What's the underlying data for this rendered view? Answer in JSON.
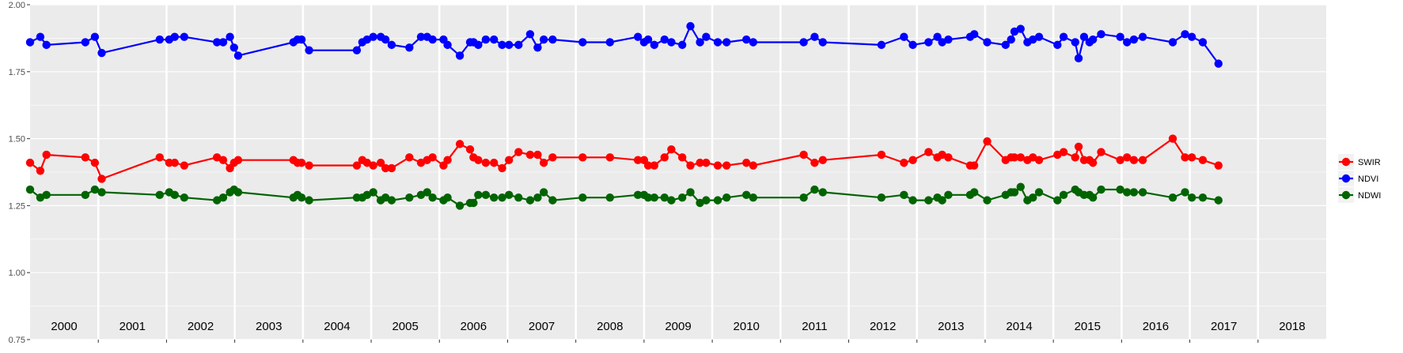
{
  "colors": {
    "panel_bg": "#EBEBEB",
    "grid_major": "#FFFFFF",
    "axis_text": "#4D4D4D",
    "year_text": "#000000",
    "swir": "#FF0000",
    "ndvi": "#0000FF",
    "ndwi": "#006400"
  },
  "chart_data": {
    "type": "line",
    "title": "",
    "xlabel": "",
    "ylabel": "",
    "xlim": [
      2000.0,
      2019.0
    ],
    "ylim": [
      0.75,
      2.0
    ],
    "y_ticks": [
      "0.75",
      "1.00",
      "1.25",
      "1.50",
      "1.75",
      "2.00"
    ],
    "year_labels": [
      "2000",
      "2001",
      "2002",
      "2003",
      "2004",
      "2005",
      "2006",
      "2007",
      "2008",
      "2009",
      "2010",
      "2011",
      "2012",
      "2013",
      "2014",
      "2015",
      "2016",
      "2017",
      "2018"
    ],
    "grid": true,
    "legend_position": "right",
    "series": [
      {
        "name": "SWIR",
        "color_key": "swir",
        "points": [
          [
            2000.0,
            1.41
          ],
          [
            2000.15,
            1.38
          ],
          [
            2000.24,
            1.44
          ],
          [
            2000.81,
            1.43
          ],
          [
            2000.95,
            1.41
          ],
          [
            2001.05,
            1.35
          ],
          [
            2001.9,
            1.43
          ],
          [
            2002.04,
            1.41
          ],
          [
            2002.12,
            1.41
          ],
          [
            2002.26,
            1.4
          ],
          [
            2002.74,
            1.43
          ],
          [
            2002.83,
            1.42
          ],
          [
            2002.93,
            1.39
          ],
          [
            2002.99,
            1.41
          ],
          [
            2003.05,
            1.42
          ],
          [
            2003.86,
            1.42
          ],
          [
            2003.92,
            1.41
          ],
          [
            2003.98,
            1.41
          ],
          [
            2004.09,
            1.4
          ],
          [
            2004.79,
            1.4
          ],
          [
            2004.87,
            1.42
          ],
          [
            2004.94,
            1.41
          ],
          [
            2005.03,
            1.4
          ],
          [
            2005.14,
            1.41
          ],
          [
            2005.21,
            1.39
          ],
          [
            2005.3,
            1.39
          ],
          [
            2005.56,
            1.43
          ],
          [
            2005.73,
            1.41
          ],
          [
            2005.82,
            1.42
          ],
          [
            2005.9,
            1.43
          ],
          [
            2006.06,
            1.4
          ],
          [
            2006.12,
            1.42
          ],
          [
            2006.3,
            1.48
          ],
          [
            2006.45,
            1.46
          ],
          [
            2006.5,
            1.43
          ],
          [
            2006.57,
            1.42
          ],
          [
            2006.68,
            1.41
          ],
          [
            2006.8,
            1.41
          ],
          [
            2006.92,
            1.39
          ],
          [
            2007.02,
            1.42
          ],
          [
            2007.16,
            1.45
          ],
          [
            2007.33,
            1.44
          ],
          [
            2007.44,
            1.44
          ],
          [
            2007.53,
            1.41
          ],
          [
            2007.66,
            1.43
          ],
          [
            2008.1,
            1.43
          ],
          [
            2008.5,
            1.43
          ],
          [
            2008.91,
            1.42
          ],
          [
            2009.0,
            1.42
          ],
          [
            2009.06,
            1.4
          ],
          [
            2009.15,
            1.4
          ],
          [
            2009.3,
            1.43
          ],
          [
            2009.4,
            1.46
          ],
          [
            2009.56,
            1.43
          ],
          [
            2009.68,
            1.4
          ],
          [
            2009.82,
            1.41
          ],
          [
            2009.91,
            1.41
          ],
          [
            2010.08,
            1.4
          ],
          [
            2010.21,
            1.4
          ],
          [
            2010.5,
            1.41
          ],
          [
            2010.6,
            1.4
          ],
          [
            2011.34,
            1.44
          ],
          [
            2011.5,
            1.41
          ],
          [
            2011.62,
            1.42
          ],
          [
            2012.48,
            1.44
          ],
          [
            2012.81,
            1.41
          ],
          [
            2012.94,
            1.42
          ],
          [
            2013.17,
            1.45
          ],
          [
            2013.3,
            1.43
          ],
          [
            2013.37,
            1.44
          ],
          [
            2013.46,
            1.43
          ],
          [
            2013.78,
            1.4
          ],
          [
            2013.84,
            1.4
          ],
          [
            2014.03,
            1.49
          ],
          [
            2014.3,
            1.42
          ],
          [
            2014.38,
            1.43
          ],
          [
            2014.43,
            1.43
          ],
          [
            2014.52,
            1.43
          ],
          [
            2014.62,
            1.42
          ],
          [
            2014.7,
            1.43
          ],
          [
            2014.79,
            1.42
          ],
          [
            2015.06,
            1.44
          ],
          [
            2015.15,
            1.45
          ],
          [
            2015.32,
            1.43
          ],
          [
            2015.37,
            1.47
          ],
          [
            2015.45,
            1.42
          ],
          [
            2015.53,
            1.42
          ],
          [
            2015.58,
            1.41
          ],
          [
            2015.7,
            1.45
          ],
          [
            2015.98,
            1.42
          ],
          [
            2016.08,
            1.43
          ],
          [
            2016.18,
            1.42
          ],
          [
            2016.31,
            1.42
          ],
          [
            2016.75,
            1.5
          ],
          [
            2016.93,
            1.43
          ],
          [
            2017.03,
            1.43
          ],
          [
            2017.19,
            1.42
          ],
          [
            2017.42,
            1.4
          ]
        ]
      },
      {
        "name": "NDVI",
        "color_key": "ndvi",
        "points": [
          [
            2000.0,
            1.86
          ],
          [
            2000.15,
            1.88
          ],
          [
            2000.24,
            1.85
          ],
          [
            2000.81,
            1.86
          ],
          [
            2000.95,
            1.88
          ],
          [
            2001.05,
            1.82
          ],
          [
            2001.9,
            1.87
          ],
          [
            2002.04,
            1.87
          ],
          [
            2002.12,
            1.88
          ],
          [
            2002.26,
            1.88
          ],
          [
            2002.74,
            1.86
          ],
          [
            2002.83,
            1.86
          ],
          [
            2002.93,
            1.88
          ],
          [
            2002.99,
            1.84
          ],
          [
            2003.05,
            1.81
          ],
          [
            2003.86,
            1.86
          ],
          [
            2003.92,
            1.87
          ],
          [
            2003.98,
            1.87
          ],
          [
            2004.09,
            1.83
          ],
          [
            2004.79,
            1.83
          ],
          [
            2004.87,
            1.86
          ],
          [
            2004.94,
            1.87
          ],
          [
            2005.03,
            1.88
          ],
          [
            2005.14,
            1.88
          ],
          [
            2005.21,
            1.87
          ],
          [
            2005.3,
            1.85
          ],
          [
            2005.56,
            1.84
          ],
          [
            2005.73,
            1.88
          ],
          [
            2005.82,
            1.88
          ],
          [
            2005.9,
            1.87
          ],
          [
            2006.06,
            1.87
          ],
          [
            2006.12,
            1.85
          ],
          [
            2006.3,
            1.81
          ],
          [
            2006.45,
            1.86
          ],
          [
            2006.5,
            1.86
          ],
          [
            2006.57,
            1.85
          ],
          [
            2006.68,
            1.87
          ],
          [
            2006.8,
            1.87
          ],
          [
            2006.92,
            1.85
          ],
          [
            2007.02,
            1.85
          ],
          [
            2007.16,
            1.85
          ],
          [
            2007.33,
            1.89
          ],
          [
            2007.44,
            1.84
          ],
          [
            2007.53,
            1.87
          ],
          [
            2007.66,
            1.87
          ],
          [
            2008.1,
            1.86
          ],
          [
            2008.5,
            1.86
          ],
          [
            2008.91,
            1.88
          ],
          [
            2009.0,
            1.86
          ],
          [
            2009.06,
            1.87
          ],
          [
            2009.15,
            1.85
          ],
          [
            2009.3,
            1.87
          ],
          [
            2009.4,
            1.86
          ],
          [
            2009.56,
            1.85
          ],
          [
            2009.68,
            1.92
          ],
          [
            2009.82,
            1.86
          ],
          [
            2009.91,
            1.88
          ],
          [
            2010.08,
            1.86
          ],
          [
            2010.21,
            1.86
          ],
          [
            2010.5,
            1.87
          ],
          [
            2010.6,
            1.86
          ],
          [
            2011.34,
            1.86
          ],
          [
            2011.5,
            1.88
          ],
          [
            2011.62,
            1.86
          ],
          [
            2012.48,
            1.85
          ],
          [
            2012.81,
            1.88
          ],
          [
            2012.94,
            1.85
          ],
          [
            2013.17,
            1.86
          ],
          [
            2013.3,
            1.88
          ],
          [
            2013.37,
            1.86
          ],
          [
            2013.46,
            1.87
          ],
          [
            2013.78,
            1.88
          ],
          [
            2013.84,
            1.89
          ],
          [
            2014.03,
            1.86
          ],
          [
            2014.3,
            1.85
          ],
          [
            2014.38,
            1.87
          ],
          [
            2014.43,
            1.9
          ],
          [
            2014.52,
            1.91
          ],
          [
            2014.62,
            1.86
          ],
          [
            2014.7,
            1.87
          ],
          [
            2014.79,
            1.88
          ],
          [
            2015.06,
            1.85
          ],
          [
            2015.15,
            1.88
          ],
          [
            2015.32,
            1.86
          ],
          [
            2015.37,
            1.8
          ],
          [
            2015.45,
            1.88
          ],
          [
            2015.53,
            1.86
          ],
          [
            2015.58,
            1.87
          ],
          [
            2015.7,
            1.89
          ],
          [
            2015.98,
            1.88
          ],
          [
            2016.08,
            1.86
          ],
          [
            2016.18,
            1.87
          ],
          [
            2016.31,
            1.88
          ],
          [
            2016.75,
            1.86
          ],
          [
            2016.93,
            1.89
          ],
          [
            2017.03,
            1.88
          ],
          [
            2017.19,
            1.86
          ],
          [
            2017.42,
            1.78
          ]
        ]
      },
      {
        "name": "NDWI",
        "color_key": "ndwi",
        "points": [
          [
            2000.0,
            1.31
          ],
          [
            2000.15,
            1.28
          ],
          [
            2000.24,
            1.29
          ],
          [
            2000.81,
            1.29
          ],
          [
            2000.95,
            1.31
          ],
          [
            2001.05,
            1.3
          ],
          [
            2001.9,
            1.29
          ],
          [
            2002.04,
            1.3
          ],
          [
            2002.12,
            1.29
          ],
          [
            2002.26,
            1.28
          ],
          [
            2002.74,
            1.27
          ],
          [
            2002.83,
            1.28
          ],
          [
            2002.93,
            1.3
          ],
          [
            2002.99,
            1.31
          ],
          [
            2003.05,
            1.3
          ],
          [
            2003.86,
            1.28
          ],
          [
            2003.92,
            1.29
          ],
          [
            2003.98,
            1.28
          ],
          [
            2004.09,
            1.27
          ],
          [
            2004.79,
            1.28
          ],
          [
            2004.87,
            1.28
          ],
          [
            2004.94,
            1.29
          ],
          [
            2005.03,
            1.3
          ],
          [
            2005.14,
            1.27
          ],
          [
            2005.21,
            1.28
          ],
          [
            2005.3,
            1.27
          ],
          [
            2005.56,
            1.28
          ],
          [
            2005.73,
            1.29
          ],
          [
            2005.82,
            1.3
          ],
          [
            2005.9,
            1.28
          ],
          [
            2006.06,
            1.27
          ],
          [
            2006.12,
            1.28
          ],
          [
            2006.3,
            1.25
          ],
          [
            2006.45,
            1.26
          ],
          [
            2006.5,
            1.26
          ],
          [
            2006.57,
            1.29
          ],
          [
            2006.68,
            1.29
          ],
          [
            2006.8,
            1.28
          ],
          [
            2006.92,
            1.28
          ],
          [
            2007.02,
            1.29
          ],
          [
            2007.16,
            1.28
          ],
          [
            2007.33,
            1.27
          ],
          [
            2007.44,
            1.28
          ],
          [
            2007.53,
            1.3
          ],
          [
            2007.66,
            1.27
          ],
          [
            2008.1,
            1.28
          ],
          [
            2008.5,
            1.28
          ],
          [
            2008.91,
            1.29
          ],
          [
            2009.0,
            1.29
          ],
          [
            2009.06,
            1.28
          ],
          [
            2009.15,
            1.28
          ],
          [
            2009.3,
            1.28
          ],
          [
            2009.4,
            1.27
          ],
          [
            2009.56,
            1.28
          ],
          [
            2009.68,
            1.3
          ],
          [
            2009.82,
            1.26
          ],
          [
            2009.91,
            1.27
          ],
          [
            2010.08,
            1.27
          ],
          [
            2010.21,
            1.28
          ],
          [
            2010.5,
            1.29
          ],
          [
            2010.6,
            1.28
          ],
          [
            2011.34,
            1.28
          ],
          [
            2011.5,
            1.31
          ],
          [
            2011.62,
            1.3
          ],
          [
            2012.48,
            1.28
          ],
          [
            2012.81,
            1.29
          ],
          [
            2012.94,
            1.27
          ],
          [
            2013.17,
            1.27
          ],
          [
            2013.3,
            1.28
          ],
          [
            2013.37,
            1.27
          ],
          [
            2013.46,
            1.29
          ],
          [
            2013.78,
            1.29
          ],
          [
            2013.84,
            1.3
          ],
          [
            2014.03,
            1.27
          ],
          [
            2014.3,
            1.29
          ],
          [
            2014.38,
            1.3
          ],
          [
            2014.43,
            1.3
          ],
          [
            2014.52,
            1.32
          ],
          [
            2014.62,
            1.27
          ],
          [
            2014.7,
            1.28
          ],
          [
            2014.79,
            1.3
          ],
          [
            2015.06,
            1.27
          ],
          [
            2015.15,
            1.29
          ],
          [
            2015.32,
            1.31
          ],
          [
            2015.37,
            1.3
          ],
          [
            2015.45,
            1.29
          ],
          [
            2015.53,
            1.29
          ],
          [
            2015.58,
            1.28
          ],
          [
            2015.7,
            1.31
          ],
          [
            2015.98,
            1.31
          ],
          [
            2016.08,
            1.3
          ],
          [
            2016.18,
            1.3
          ],
          [
            2016.31,
            1.3
          ],
          [
            2016.75,
            1.28
          ],
          [
            2016.93,
            1.3
          ],
          [
            2017.03,
            1.28
          ],
          [
            2017.19,
            1.28
          ],
          [
            2017.42,
            1.27
          ]
        ]
      }
    ]
  }
}
